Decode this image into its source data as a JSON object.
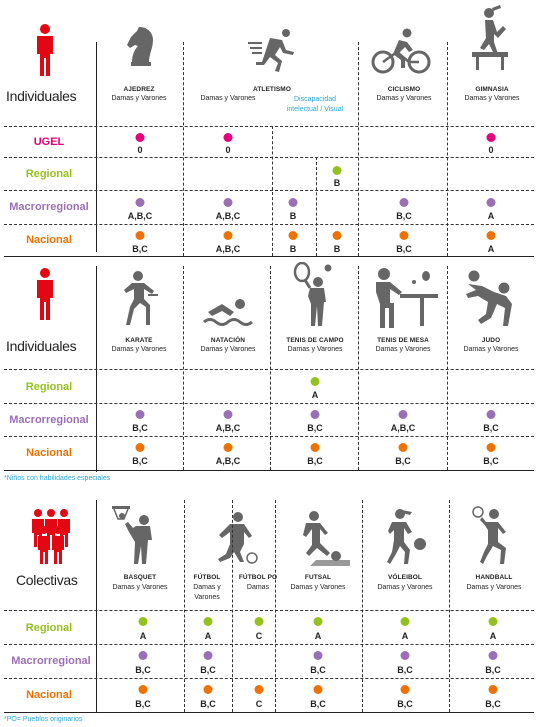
{
  "colors": {
    "ugel": "#e6007e",
    "regional": "#95c11f",
    "macrorregional": "#9b6fb5",
    "nacional": "#ee7203",
    "accent": "#2aa8d6",
    "person": "#e30613",
    "icon": "#666666"
  },
  "levels": {
    "ugel": "UGEL",
    "regional": "Regional",
    "macrorregional": "Macrorregional",
    "nacional": "Nacional"
  },
  "section1": {
    "title": "Individuales",
    "sports": [
      {
        "name": "AJEDREZ",
        "sub": "Damas y Varones",
        "icon": "chess-knight-icon"
      },
      {
        "name": "ATLETISMO",
        "sub": "Damas y Varones",
        "icon": "runner-icon"
      },
      {
        "name": "CICLISMO",
        "sub": "Damas y Varones",
        "icon": "cyclist-icon"
      },
      {
        "name": "GIMNASIA",
        "sub": "Damas y Varones",
        "icon": "gymnast-icon"
      }
    ],
    "disability_label_1": "Discapacidad",
    "disability_label_2": "intelectual  /  Visual",
    "ugel": [
      "0",
      "0",
      "0"
    ],
    "regional": [
      "B"
    ],
    "macro": [
      "A,B,C",
      "A,B,C",
      "B",
      "B,C",
      "A"
    ],
    "nacional": [
      "B,C",
      "A,B,C",
      "B",
      "B",
      "B,C",
      "A"
    ]
  },
  "section2": {
    "title": "Individuales",
    "sports": [
      {
        "name": "KARATE",
        "sub": "Damas y Varones",
        "icon": "karate-icon"
      },
      {
        "name": "NATACIÓN",
        "sub": "Damas y Varones",
        "icon": "swimmer-icon"
      },
      {
        "name": "TENIS DE CAMPO",
        "sub": "Damas y Varones",
        "icon": "tennis-icon"
      },
      {
        "name": "TENIS DE MESA",
        "sub": "Damas y Varones",
        "icon": "table-tennis-icon"
      },
      {
        "name": "JUDO",
        "sub": "Damas y Varones",
        "icon": "judo-icon"
      }
    ],
    "regional": [
      "A"
    ],
    "macro": [
      "B,C",
      "A,B,C",
      "B,C",
      "A,B,C",
      "B,C"
    ],
    "nacional": [
      "B,C",
      "A,B,C",
      "B,C",
      "B,C",
      "B,C"
    ],
    "note": "*Niños con habilidades especiales"
  },
  "section3": {
    "title": "Colectivas",
    "sports": [
      {
        "name": "BASQUET",
        "sub": "Damas y Varones",
        "icon": "basketball-icon"
      },
      {
        "name": "FÚTBOL",
        "sub": "Damas y",
        "sub2": "Varones",
        "icon": "soccer-icon"
      },
      {
        "name": "FÚTBOL PO",
        "sub": "Damas",
        "icon": "soccer-po-icon"
      },
      {
        "name": "FUTSAL",
        "sub": "Damas y Varones",
        "icon": "futsal-icon"
      },
      {
        "name": "VÓLEIBOL",
        "sub": "Damas y Varones",
        "icon": "volleyball-icon"
      },
      {
        "name": "HANDBALL",
        "sub": "Damas y Varones",
        "icon": "handball-icon"
      }
    ],
    "regional": [
      "A",
      "A",
      "C",
      "A",
      "A",
      "A"
    ],
    "macro": [
      "B,C",
      "B,C",
      "B,C",
      "B,C",
      "B,C"
    ],
    "nacional": [
      "B,C",
      "B,C",
      "C",
      "B,C",
      "B,C",
      "B,C"
    ],
    "note": "*PO= Pueblos originarios"
  }
}
